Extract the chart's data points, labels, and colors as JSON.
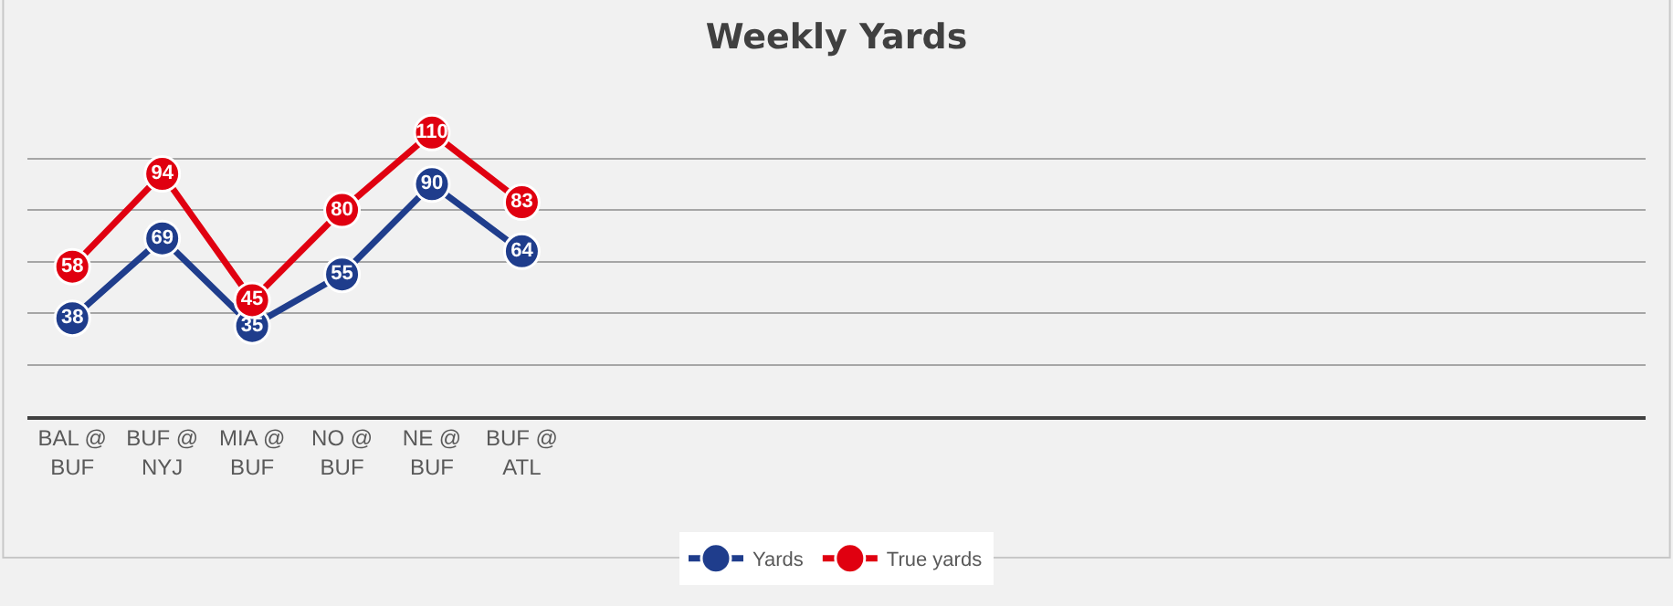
{
  "chart_data": {
    "type": "line",
    "title": "Weekly Yards",
    "categories": [
      "BAL @ BUF",
      "BUF @ NYJ",
      "MIA @ BUF",
      "NO @ BUF",
      "NE @ BUF",
      "BUF @ ATL",
      null,
      null,
      null,
      null,
      null,
      null,
      null,
      null,
      null,
      null,
      null,
      null
    ],
    "series": [
      {
        "name": "Yards",
        "color": "#1f3d8c",
        "values": [
          38,
          69,
          35,
          55,
          90,
          64,
          null,
          null,
          null,
          null,
          null,
          null,
          null,
          null,
          null,
          null,
          null,
          null
        ]
      },
      {
        "name": "True yards",
        "color": "#e00010",
        "values": [
          58,
          94,
          45,
          80,
          110,
          83,
          null,
          null,
          null,
          null,
          null,
          null,
          null,
          null,
          null,
          null,
          null,
          null
        ]
      }
    ],
    "yticks": [
      {
        "value": 0,
        "label": null
      },
      {
        "value": 20,
        "label": null
      },
      {
        "value": 40,
        "label": null
      },
      {
        "value": 60,
        "label": null
      },
      {
        "value": 80,
        "label": null
      },
      {
        "value": 100,
        "label": null
      }
    ],
    "tick_labels": "x",
    "grid": "y",
    "legend": "bottom",
    "marker": "circle",
    "line_style": "solid",
    "data_labels": true
  }
}
